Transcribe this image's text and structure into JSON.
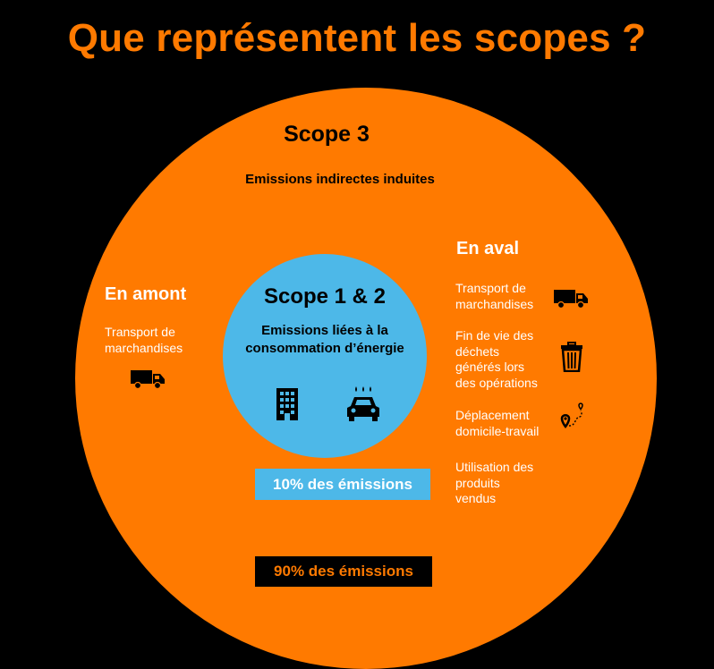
{
  "title": "Que représentent les scopes ?",
  "colors": {
    "background": "#000000",
    "orange": "#ff7a00",
    "blue": "#4db8e8"
  },
  "scope3": {
    "title": "Scope 3",
    "subtitle": "Emissions indirectes induites",
    "share": "90% des émissions"
  },
  "scope12": {
    "title": "Scope 1 & 2",
    "description_line1": "Emissions liées à la",
    "description_line2": "consommation d’énergie",
    "share": "10% des émissions"
  },
  "amont": {
    "title": "En amont",
    "item_line1": "Transport de",
    "item_line2": "marchandises",
    "icon": "truck-icon"
  },
  "aval": {
    "title": "En aval",
    "items": [
      {
        "lines": [
          "Transport de",
          "marchandises"
        ],
        "icon": "truck-icon"
      },
      {
        "lines": [
          "Fin de vie des",
          "déchets",
          "générés lors",
          "des opérations"
        ],
        "icon": "trash-bin-icon"
      },
      {
        "lines": [
          "Déplacement",
          "domicile-travail"
        ],
        "icon": "route-pin-icon"
      },
      {
        "lines": [
          "Utilisation des",
          "produits",
          "vendus"
        ],
        "icon": ""
      }
    ]
  }
}
